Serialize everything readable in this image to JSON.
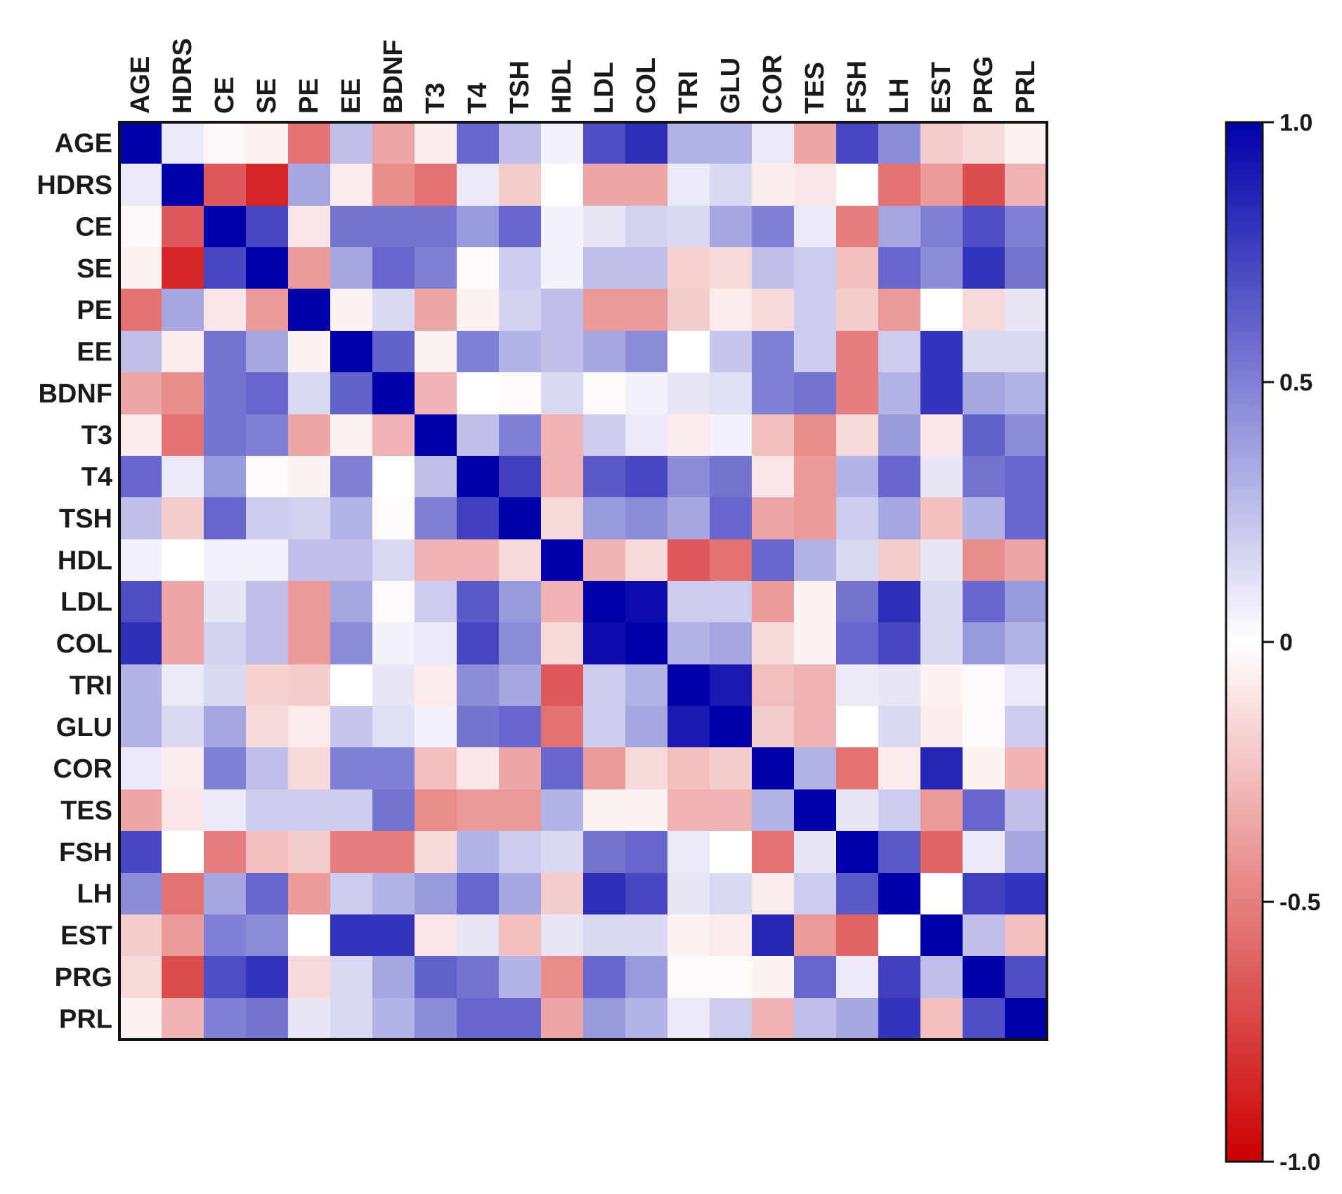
{
  "chart_data": {
    "type": "heatmap",
    "title": "",
    "xlabel": "",
    "ylabel": "",
    "variables": [
      "AGE",
      "HDRS",
      "CE",
      "SE",
      "PE",
      "EE",
      "BDNF",
      "T3",
      "T4",
      "TSH",
      "HDL",
      "LDL",
      "COL",
      "TRI",
      "GLU",
      "COR",
      "TES",
      "FSH",
      "LH",
      "EST",
      "PRG",
      "PRL"
    ],
    "values": [
      [
        1,
        0.08,
        -0.03,
        -0.05,
        -0.55,
        0.25,
        -0.35,
        -0.08,
        0.6,
        0.25,
        0.05,
        0.7,
        0.82,
        0.3,
        0.3,
        0.08,
        -0.35,
        0.72,
        0.45,
        -0.2,
        -0.15,
        -0.05
      ],
      [
        0.08,
        1,
        -0.65,
        -0.85,
        0.35,
        -0.08,
        -0.45,
        -0.55,
        0.08,
        -0.2,
        0,
        -0.35,
        -0.35,
        0.08,
        0.15,
        -0.08,
        -0.1,
        0,
        -0.55,
        -0.4,
        -0.7,
        -0.3
      ],
      [
        -0.03,
        -0.65,
        1,
        0.72,
        -0.1,
        0.55,
        0.55,
        0.55,
        0.4,
        0.6,
        0.05,
        0.1,
        0.18,
        0.15,
        0.35,
        0.5,
        0.08,
        -0.5,
        0.35,
        0.5,
        0.7,
        0.5
      ],
      [
        -0.05,
        -0.85,
        0.72,
        1,
        -0.4,
        0.35,
        0.6,
        0.5,
        -0.02,
        0.2,
        0.05,
        0.25,
        0.25,
        -0.18,
        -0.15,
        0.25,
        0.2,
        -0.25,
        0.6,
        0.45,
        0.8,
        0.55
      ],
      [
        -0.55,
        0.35,
        -0.1,
        -0.4,
        1,
        -0.05,
        0.15,
        -0.35,
        -0.05,
        0.18,
        0.25,
        -0.4,
        -0.4,
        -0.2,
        -0.08,
        -0.15,
        0.2,
        -0.2,
        -0.4,
        0,
        -0.15,
        0.1
      ],
      [
        0.25,
        -0.08,
        0.55,
        0.35,
        -0.05,
        1,
        0.62,
        -0.05,
        0.5,
        0.3,
        0.25,
        0.35,
        0.45,
        0,
        0.22,
        0.5,
        0.2,
        -0.5,
        0.2,
        0.8,
        0.15,
        0.15
      ],
      [
        -0.35,
        -0.45,
        0.55,
        0.6,
        0.15,
        0.62,
        1,
        -0.3,
        0,
        -0.02,
        0.15,
        -0.02,
        0.05,
        0.1,
        0.12,
        0.5,
        0.55,
        -0.5,
        0.3,
        0.8,
        0.35,
        0.3
      ],
      [
        -0.08,
        -0.55,
        0.55,
        0.5,
        -0.35,
        -0.05,
        -0.3,
        1,
        0.25,
        0.5,
        -0.3,
        0.2,
        0.08,
        -0.08,
        0.05,
        -0.25,
        -0.45,
        -0.15,
        0.4,
        -0.1,
        0.62,
        0.45
      ],
      [
        0.6,
        0.08,
        0.4,
        -0.02,
        -0.05,
        0.5,
        0,
        0.25,
        1,
        0.75,
        -0.3,
        0.65,
        0.72,
        0.45,
        0.55,
        -0.1,
        -0.4,
        0.3,
        0.6,
        0.1,
        0.55,
        0.6
      ],
      [
        0.25,
        -0.2,
        0.6,
        0.2,
        0.18,
        0.3,
        -0.02,
        0.5,
        0.75,
        1,
        -0.15,
        0.4,
        0.45,
        0.35,
        0.6,
        -0.35,
        -0.4,
        0.2,
        0.35,
        -0.25,
        0.3,
        0.6
      ],
      [
        0.05,
        0,
        0.05,
        0.05,
        0.25,
        0.25,
        0.15,
        -0.3,
        -0.3,
        -0.15,
        1,
        -0.3,
        -0.15,
        -0.65,
        -0.55,
        0.6,
        0.3,
        0.15,
        -0.2,
        0.1,
        -0.45,
        -0.35
      ],
      [
        0.7,
        -0.35,
        0.1,
        0.25,
        -0.4,
        0.35,
        -0.02,
        0.2,
        0.65,
        0.4,
        -0.3,
        1,
        0.95,
        0.2,
        0.2,
        -0.4,
        -0.05,
        0.55,
        0.82,
        0.15,
        0.6,
        0.4
      ],
      [
        0.82,
        -0.35,
        0.18,
        0.25,
        -0.4,
        0.45,
        0.05,
        0.08,
        0.72,
        0.45,
        -0.15,
        0.95,
        1,
        0.3,
        0.35,
        -0.15,
        -0.05,
        0.6,
        0.72,
        0.15,
        0.4,
        0.3
      ],
      [
        0.3,
        0.08,
        0.15,
        -0.18,
        -0.2,
        0,
        0.1,
        -0.08,
        0.45,
        0.35,
        -0.65,
        0.2,
        0.3,
        1,
        0.9,
        -0.25,
        -0.3,
        0.08,
        0.1,
        -0.05,
        -0.02,
        0.08
      ],
      [
        0.3,
        0.15,
        0.35,
        -0.15,
        -0.08,
        0.22,
        0.12,
        0.05,
        0.55,
        0.6,
        -0.55,
        0.2,
        0.35,
        0.9,
        1,
        -0.2,
        -0.3,
        0,
        0.15,
        -0.08,
        -0.02,
        0.2
      ],
      [
        0.08,
        -0.08,
        0.5,
        0.25,
        -0.15,
        0.5,
        0.5,
        -0.25,
        -0.1,
        -0.35,
        0.6,
        -0.4,
        -0.15,
        -0.25,
        -0.2,
        1,
        0.3,
        -0.55,
        -0.08,
        0.85,
        -0.05,
        -0.3
      ],
      [
        -0.35,
        -0.1,
        0.08,
        0.2,
        0.2,
        0.2,
        0.55,
        -0.45,
        -0.4,
        -0.4,
        0.3,
        -0.05,
        -0.05,
        -0.3,
        -0.3,
        0.3,
        1,
        0.1,
        0.2,
        -0.4,
        0.6,
        0.25
      ],
      [
        0.72,
        0,
        -0.5,
        -0.25,
        -0.2,
        -0.5,
        -0.5,
        -0.15,
        0.3,
        0.2,
        0.15,
        0.55,
        0.6,
        0.08,
        0,
        -0.55,
        0.1,
        1,
        0.65,
        -0.6,
        0.08,
        0.35
      ],
      [
        0.45,
        -0.55,
        0.35,
        0.6,
        -0.4,
        0.2,
        0.3,
        0.4,
        0.6,
        0.35,
        -0.2,
        0.82,
        0.72,
        0.1,
        0.15,
        -0.08,
        0.2,
        0.65,
        1,
        0,
        0.75,
        0.8
      ],
      [
        -0.2,
        -0.4,
        0.5,
        0.45,
        0,
        0.8,
        0.8,
        -0.1,
        0.1,
        -0.25,
        0.1,
        0.15,
        0.15,
        -0.05,
        -0.08,
        0.85,
        -0.4,
        -0.6,
        0,
        1,
        0.25,
        -0.25
      ],
      [
        -0.15,
        -0.7,
        0.7,
        0.8,
        -0.15,
        0.15,
        0.35,
        0.62,
        0.55,
        0.3,
        -0.45,
        0.6,
        0.4,
        -0.02,
        -0.02,
        -0.05,
        0.6,
        0.08,
        0.75,
        0.25,
        1,
        0.7
      ],
      [
        -0.05,
        -0.3,
        0.5,
        0.55,
        0.1,
        0.15,
        0.3,
        0.45,
        0.6,
        0.6,
        -0.35,
        0.4,
        0.3,
        0.08,
        0.2,
        -0.3,
        0.25,
        0.35,
        0.8,
        -0.25,
        0.7,
        1
      ]
    ],
    "colorbar": {
      "min": -1.0,
      "max": 1.0,
      "tick_values": [
        1.0,
        0.5,
        0,
        -0.5,
        -1.0
      ],
      "tick_labels": [
        "1.0",
        "0.5",
        "0",
        "-0.5",
        "-1.0"
      ],
      "colors": {
        "negative": "#cc0000",
        "neutral": "#ffffff",
        "positive": "#0000aa"
      }
    }
  }
}
